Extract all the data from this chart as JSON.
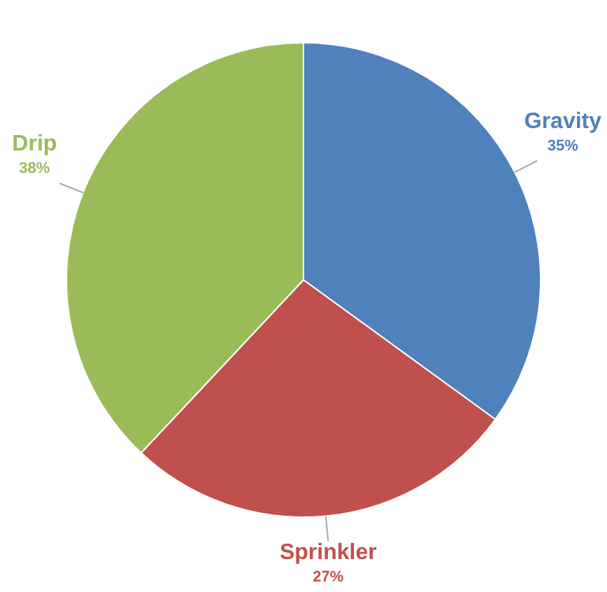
{
  "chart_data": {
    "type": "pie",
    "categories": [
      "Gravity",
      "Sprinkler",
      "Drip"
    ],
    "values": [
      35,
      27,
      38
    ],
    "colors": [
      "#4f81bd",
      "#c0504d",
      "#9bbb59"
    ],
    "value_labels": [
      "35%",
      "27%",
      "38%"
    ],
    "legend": false
  }
}
